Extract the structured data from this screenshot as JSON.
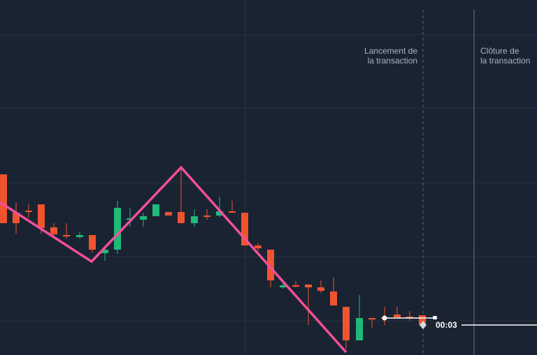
{
  "chart": {
    "launch_label": "Lancement de\nla transaction",
    "close_label": "Clôture de\nla transaction",
    "timer": "00:03",
    "colors": {
      "background": "#1a2332",
      "grid": "#243042",
      "up": "#1fb97a",
      "down": "#f0542f",
      "zigzag": "#f24f9a",
      "line": "#ffffff",
      "marker": "#d7dce4"
    }
  }
}
